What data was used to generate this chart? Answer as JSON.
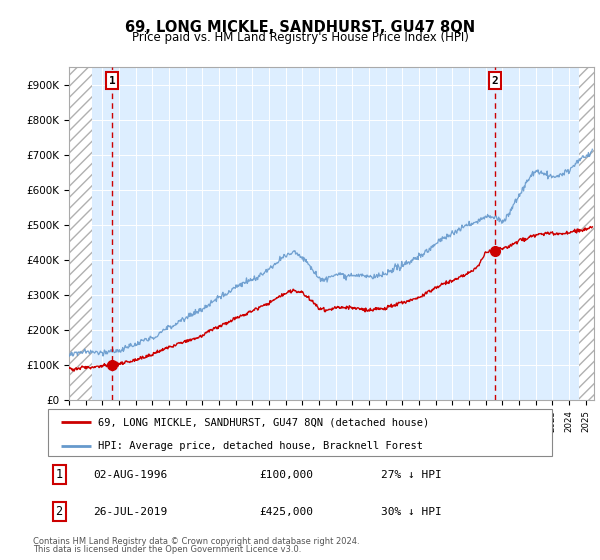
{
  "title": "69, LONG MICKLE, SANDHURST, GU47 8QN",
  "subtitle": "Price paid vs. HM Land Registry's House Price Index (HPI)",
  "legend_line1": "69, LONG MICKLE, SANDHURST, GU47 8QN (detached house)",
  "legend_line2": "HPI: Average price, detached house, Bracknell Forest",
  "footnote1": "Contains HM Land Registry data © Crown copyright and database right 2024.",
  "footnote2": "This data is licensed under the Open Government Licence v3.0.",
  "sale1_date": "02-AUG-1996",
  "sale1_price": "£100,000",
  "sale1_hpi": "27% ↓ HPI",
  "sale2_date": "26-JUL-2019",
  "sale2_price": "£425,000",
  "sale2_hpi": "30% ↓ HPI",
  "sale1_x": 1996.58,
  "sale1_y": 100000,
  "sale2_x": 2019.56,
  "sale2_y": 425000,
  "hpi_color": "#6699cc",
  "price_color": "#cc0000",
  "background_plot": "#ddeeff",
  "grid_color": "#ffffff",
  "ylim": [
    0,
    950000
  ],
  "xlim_start": 1994.0,
  "xlim_end": 2025.5,
  "hatch_left_end": 1995.4,
  "hatch_right_start": 2024.6
}
